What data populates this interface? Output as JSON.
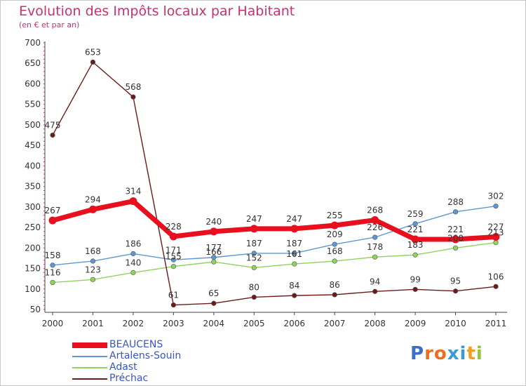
{
  "chart_data": {
    "type": "line",
    "title": "Evolution des Impôts locaux par Habitant",
    "subtitle": "(en € et par an)",
    "xlabel": "",
    "ylabel": "",
    "categories": [
      "2000",
      "2001",
      "2002",
      "2003",
      "2004",
      "2005",
      "2006",
      "2007",
      "2008",
      "2009",
      "2010",
      "2011"
    ],
    "ylim": [
      50,
      700
    ],
    "yticks": [
      50,
      100,
      150,
      200,
      250,
      300,
      350,
      400,
      450,
      500,
      550,
      600,
      650,
      700
    ],
    "grid": false,
    "legend_position": "bottom-left",
    "series": [
      {
        "name": "BEAUCENS",
        "color": "#e8101e",
        "values": [
          267,
          294,
          314,
          228,
          240,
          247,
          247,
          255,
          268,
          221,
          221,
          227
        ]
      },
      {
        "name": "Artalens-Souin",
        "color": "#5b98d2",
        "values": [
          158,
          168,
          186,
          171,
          177,
          187,
          187,
          209,
          226,
          259,
          288,
          302
        ]
      },
      {
        "name": "Adast",
        "color": "#8fd45a",
        "values": [
          116,
          123,
          140,
          155,
          166,
          152,
          161,
          168,
          178,
          183,
          200,
          213
        ]
      },
      {
        "name": "Préchac",
        "color": "#6e1a1a",
        "values": [
          475,
          653,
          568,
          61,
          65,
          80,
          84,
          86,
          94,
          99,
          95,
          106
        ]
      }
    ]
  },
  "logo": {
    "text": "Proxiti",
    "letter_colors": [
      "#3a6fc8",
      "#e8701e",
      "#e8701e",
      "#3a9ad2",
      "#3a9ad2",
      "#f0a020",
      "#8fc83a"
    ]
  }
}
